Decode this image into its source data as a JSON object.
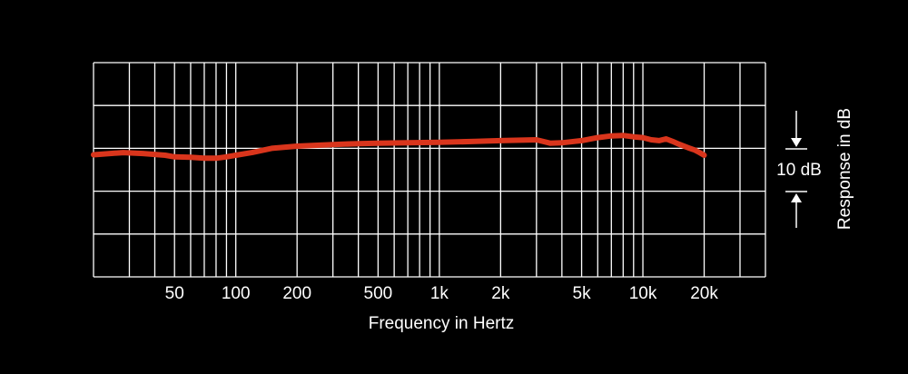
{
  "colors": {
    "background": "#000000",
    "grid": "#ffffff",
    "curve": "#d9351c",
    "text": "#ffffff"
  },
  "chart_data": {
    "type": "line",
    "xscale": "log",
    "xlim": [
      20,
      40000
    ],
    "ylim": [
      -30,
      20
    ],
    "grid": true,
    "xlabel": "Frequency in Hertz",
    "ylabel": "Response in dB",
    "scale_indicator": "10 dB",
    "x_tick_labels": [
      {
        "value": 50,
        "label": "50"
      },
      {
        "value": 100,
        "label": "100"
      },
      {
        "value": 200,
        "label": "200"
      },
      {
        "value": 500,
        "label": "500"
      },
      {
        "value": 1000,
        "label": "1k"
      },
      {
        "value": 2000,
        "label": "2k"
      },
      {
        "value": 5000,
        "label": "5k"
      },
      {
        "value": 10000,
        "label": "10k"
      },
      {
        "value": 20000,
        "label": "20k"
      }
    ],
    "series": [
      {
        "x": [
          20,
          28,
          35,
          45,
          50,
          60,
          70,
          80,
          90,
          100,
          120,
          150,
          200,
          300,
          400,
          500,
          700,
          1000,
          1500,
          2000,
          3000,
          3500,
          4000,
          5000,
          6000,
          7000,
          8000,
          9000,
          10000,
          11000,
          12000,
          13000,
          14000,
          15000,
          17000,
          18000,
          19000,
          20000
        ],
        "y": [
          -1.5,
          -1.0,
          -1.2,
          -1.6,
          -2.0,
          -2.1,
          -2.3,
          -2.3,
          -2.0,
          -1.6,
          -1.0,
          0.0,
          0.5,
          0.9,
          1.1,
          1.2,
          1.3,
          1.4,
          1.6,
          1.8,
          2.0,
          1.2,
          1.3,
          1.8,
          2.5,
          2.9,
          3.0,
          2.7,
          2.5,
          2.0,
          1.8,
          2.2,
          1.6,
          1.0,
          0.0,
          -0.4,
          -1.0,
          -1.6
        ]
      }
    ]
  }
}
